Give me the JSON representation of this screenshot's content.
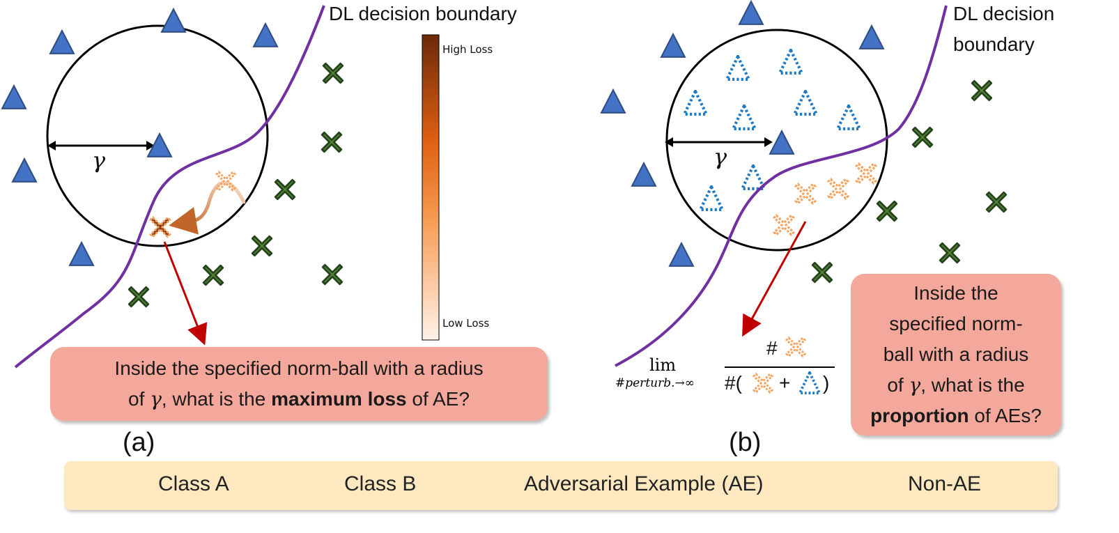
{
  "panel_a": {
    "boundary_label": "DL decision boundary",
    "gamma": "γ",
    "colorbar": {
      "high": "High Loss",
      "low": "Low Loss"
    },
    "callout": {
      "line1": "Inside the specified norm-ball with a radius",
      "pre": "of ",
      "gamma": "γ",
      "mid": ", what is the ",
      "bold": "maximum loss",
      "post": " of AE?"
    },
    "label": "(a)"
  },
  "panel_b": {
    "boundary_label_1": "DL decision",
    "boundary_label_2": "boundary",
    "gamma": "γ",
    "formula": {
      "lim": "lim",
      "sub": "#perturb.→∞",
      "numerator": "#",
      "den_open": "#(",
      "plus": "+",
      "den_close": ")"
    },
    "callout": {
      "l1": "Inside the",
      "l2": "specified norm-",
      "l3": "ball with a radius",
      "l4_pre": "of ",
      "l4_gamma": "γ",
      "l4_post": ", what is the",
      "l5_bold": "proportion",
      "l5_post": " of AEs?"
    },
    "label": "(b)"
  },
  "legend": {
    "class_a": "Class A",
    "class_b": "Class B",
    "ae": "Adversarial Example (AE)",
    "non_ae": "Non-AE"
  },
  "colors": {
    "class_a_fill": "#4472c4",
    "class_b_fill": "#548235",
    "ae": "#f4a460",
    "non_ae": "#1f7ac4",
    "boundary": "#7030a0",
    "arrow": "#c00000",
    "callout_bg": "#f4a79b",
    "legend_bg": "#fde8c0"
  },
  "icons": [
    "triangle-icon",
    "x-mark-icon",
    "adversarial-x-icon",
    "dashed-triangle-icon"
  ]
}
